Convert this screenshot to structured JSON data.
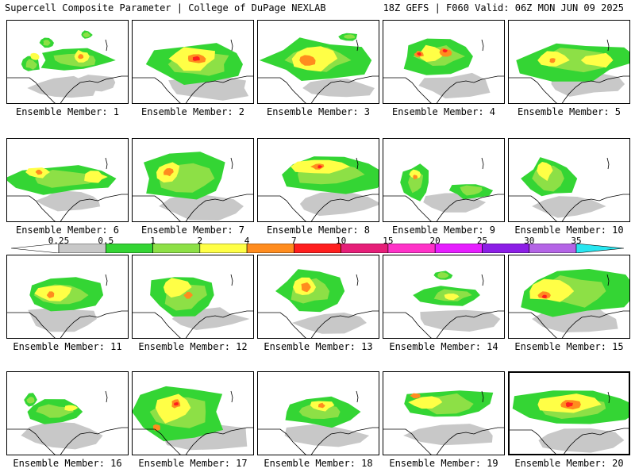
{
  "header": {
    "left": "Supercell Composite Parameter | College of DuPage NEXLAB",
    "right": "18Z GEFS | F060 Valid: 06Z MON JUN 09 2025"
  },
  "legend": {
    "labels": [
      "0.25",
      "0.5",
      "1",
      "2",
      "4",
      "7",
      "10",
      "15",
      "20",
      "25",
      "30",
      "35"
    ],
    "colors": [
      "#c8c8c8",
      "#34d534",
      "#8de046",
      "#ffff46",
      "#ff8c1e",
      "#ff1e1e",
      "#e61e78",
      "#ff32c8",
      "#e61eff",
      "#8c1ee6",
      "#b464e6",
      "#28e6f0"
    ]
  },
  "panels": [
    {
      "label": "Ensemble Member: 1"
    },
    {
      "label": "Ensemble Member: 2"
    },
    {
      "label": "Ensemble Member: 3"
    },
    {
      "label": "Ensemble Member: 4"
    },
    {
      "label": "Ensemble Member: 5"
    },
    {
      "label": "Ensemble Member: 6"
    },
    {
      "label": "Ensemble Member: 7"
    },
    {
      "label": "Ensemble Member: 8"
    },
    {
      "label": "Ensemble Member: 9"
    },
    {
      "label": "Ensemble Member: 10"
    },
    {
      "label": "Ensemble Member: 11"
    },
    {
      "label": "Ensemble Member: 12"
    },
    {
      "label": "Ensemble Member: 13"
    },
    {
      "label": "Ensemble Member: 14"
    },
    {
      "label": "Ensemble Member: 15"
    },
    {
      "label": "Ensemble Member: 16"
    },
    {
      "label": "Ensemble Member: 17"
    },
    {
      "label": "Ensemble Member: 18"
    },
    {
      "label": "Ensemble Member: 19"
    },
    {
      "label": "Ensemble Member: 20"
    }
  ]
}
